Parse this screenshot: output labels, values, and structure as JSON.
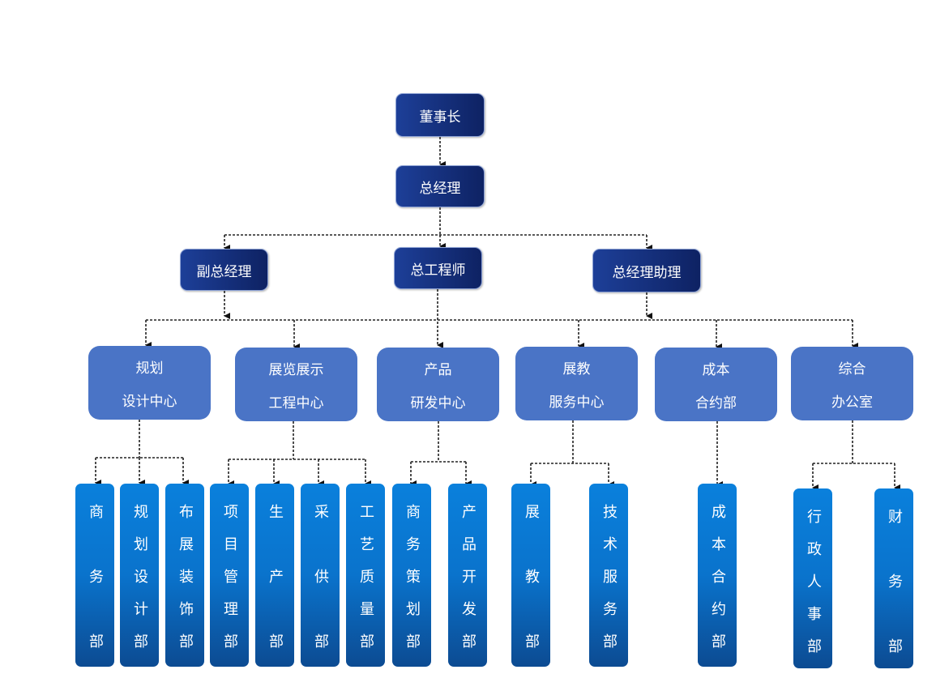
{
  "colors": {
    "executive": "#14307e",
    "center": "#4a74c6",
    "department": "#0a73cc"
  },
  "executives": {
    "chairman": "董事长",
    "general_manager": "总经理",
    "deputy_gm": "副总经理",
    "chief_engineer": "总工程师",
    "gm_assistant": "总经理助理"
  },
  "centers": [
    {
      "line1": "规划",
      "line2": "设计中心"
    },
    {
      "line1": "展览展示",
      "line2": "工程中心"
    },
    {
      "line1": "产品",
      "line2": "研发中心"
    },
    {
      "line1": "展教",
      "line2": "服务中心"
    },
    {
      "line1": "成本",
      "line2": "合约部"
    },
    {
      "line1": "综合",
      "line2": "办公室"
    }
  ],
  "departments": [
    "商务部",
    "规划设计部",
    "布展装饰部",
    "项目管理部",
    "生产部",
    "采供部",
    "工艺质量部",
    "商务策划部",
    "产品开发部",
    "展教部",
    "技术服务部",
    "成本合约部",
    "行政人事部",
    "财务部"
  ]
}
